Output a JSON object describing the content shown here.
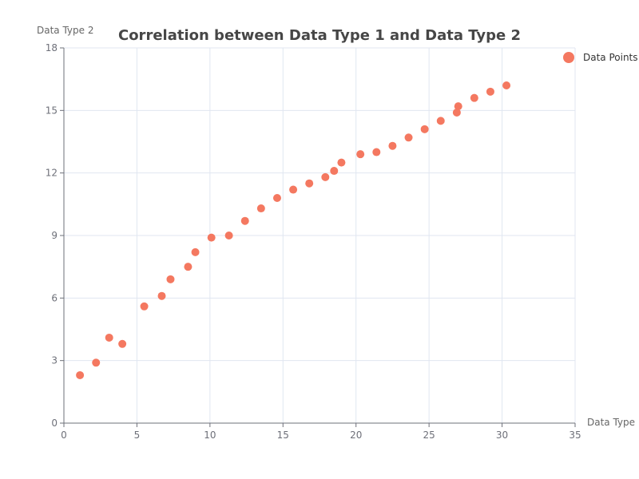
{
  "chart_data": {
    "type": "scatter",
    "title": "Correlation between Data Type 1 and Data Type 2",
    "xlabel": "Data Type 1",
    "ylabel": "Data Type 2",
    "xlim": [
      0,
      35
    ],
    "ylim": [
      0,
      18
    ],
    "x_ticks": [
      0,
      5,
      10,
      15,
      20,
      25,
      30,
      35
    ],
    "y_ticks": [
      0,
      3,
      6,
      9,
      12,
      15,
      18
    ],
    "grid": true,
    "legend_position": "top-right",
    "series": [
      {
        "name": "Data Points",
        "color": "#f47860",
        "points": [
          [
            1.1,
            2.3
          ],
          [
            2.2,
            2.9
          ],
          [
            3.1,
            4.1
          ],
          [
            4.0,
            3.8
          ],
          [
            5.5,
            5.6
          ],
          [
            6.7,
            6.1
          ],
          [
            7.3,
            6.9
          ],
          [
            8.5,
            7.5
          ],
          [
            9.0,
            8.2
          ],
          [
            10.1,
            8.9
          ],
          [
            11.3,
            9.0
          ],
          [
            12.4,
            9.7
          ],
          [
            13.5,
            10.3
          ],
          [
            14.6,
            10.8
          ],
          [
            15.7,
            11.2
          ],
          [
            16.8,
            11.5
          ],
          [
            17.9,
            11.8
          ],
          [
            18.5,
            12.1
          ],
          [
            19.0,
            12.5
          ],
          [
            20.3,
            12.9
          ],
          [
            21.4,
            13.0
          ],
          [
            22.5,
            13.3
          ],
          [
            23.6,
            13.7
          ],
          [
            24.7,
            14.1
          ],
          [
            25.8,
            14.5
          ],
          [
            26.9,
            14.9
          ],
          [
            27.0,
            15.2
          ],
          [
            28.1,
            15.6
          ],
          [
            29.2,
            15.9
          ],
          [
            30.3,
            16.2
          ]
        ]
      }
    ]
  }
}
